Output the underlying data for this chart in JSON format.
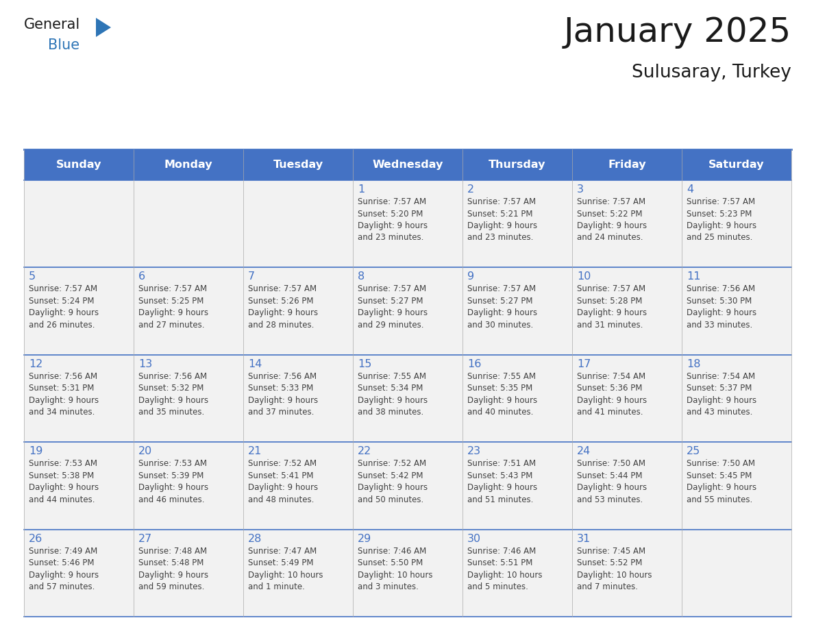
{
  "title": "January 2025",
  "subtitle": "Sulusaray, Turkey",
  "days_of_week": [
    "Sunday",
    "Monday",
    "Tuesday",
    "Wednesday",
    "Thursday",
    "Friday",
    "Saturday"
  ],
  "header_bg": "#4472C4",
  "header_text": "#FFFFFF",
  "cell_bg_light": "#F2F2F2",
  "cell_bg_white": "#FFFFFF",
  "border_color": "#4472C4",
  "row_line_color": "#4472C4",
  "day_num_color": "#4472C4",
  "text_color": "#404040",
  "title_color": "#1a1a1a",
  "logo_general_color": "#1a1a1a",
  "logo_blue_color": "#2E75B6",
  "calendar_data": [
    [
      {
        "day": null,
        "info": ""
      },
      {
        "day": null,
        "info": ""
      },
      {
        "day": null,
        "info": ""
      },
      {
        "day": 1,
        "info": "Sunrise: 7:57 AM\nSunset: 5:20 PM\nDaylight: 9 hours\nand 23 minutes."
      },
      {
        "day": 2,
        "info": "Sunrise: 7:57 AM\nSunset: 5:21 PM\nDaylight: 9 hours\nand 23 minutes."
      },
      {
        "day": 3,
        "info": "Sunrise: 7:57 AM\nSunset: 5:22 PM\nDaylight: 9 hours\nand 24 minutes."
      },
      {
        "day": 4,
        "info": "Sunrise: 7:57 AM\nSunset: 5:23 PM\nDaylight: 9 hours\nand 25 minutes."
      }
    ],
    [
      {
        "day": 5,
        "info": "Sunrise: 7:57 AM\nSunset: 5:24 PM\nDaylight: 9 hours\nand 26 minutes."
      },
      {
        "day": 6,
        "info": "Sunrise: 7:57 AM\nSunset: 5:25 PM\nDaylight: 9 hours\nand 27 minutes."
      },
      {
        "day": 7,
        "info": "Sunrise: 7:57 AM\nSunset: 5:26 PM\nDaylight: 9 hours\nand 28 minutes."
      },
      {
        "day": 8,
        "info": "Sunrise: 7:57 AM\nSunset: 5:27 PM\nDaylight: 9 hours\nand 29 minutes."
      },
      {
        "day": 9,
        "info": "Sunrise: 7:57 AM\nSunset: 5:27 PM\nDaylight: 9 hours\nand 30 minutes."
      },
      {
        "day": 10,
        "info": "Sunrise: 7:57 AM\nSunset: 5:28 PM\nDaylight: 9 hours\nand 31 minutes."
      },
      {
        "day": 11,
        "info": "Sunrise: 7:56 AM\nSunset: 5:30 PM\nDaylight: 9 hours\nand 33 minutes."
      }
    ],
    [
      {
        "day": 12,
        "info": "Sunrise: 7:56 AM\nSunset: 5:31 PM\nDaylight: 9 hours\nand 34 minutes."
      },
      {
        "day": 13,
        "info": "Sunrise: 7:56 AM\nSunset: 5:32 PM\nDaylight: 9 hours\nand 35 minutes."
      },
      {
        "day": 14,
        "info": "Sunrise: 7:56 AM\nSunset: 5:33 PM\nDaylight: 9 hours\nand 37 minutes."
      },
      {
        "day": 15,
        "info": "Sunrise: 7:55 AM\nSunset: 5:34 PM\nDaylight: 9 hours\nand 38 minutes."
      },
      {
        "day": 16,
        "info": "Sunrise: 7:55 AM\nSunset: 5:35 PM\nDaylight: 9 hours\nand 40 minutes."
      },
      {
        "day": 17,
        "info": "Sunrise: 7:54 AM\nSunset: 5:36 PM\nDaylight: 9 hours\nand 41 minutes."
      },
      {
        "day": 18,
        "info": "Sunrise: 7:54 AM\nSunset: 5:37 PM\nDaylight: 9 hours\nand 43 minutes."
      }
    ],
    [
      {
        "day": 19,
        "info": "Sunrise: 7:53 AM\nSunset: 5:38 PM\nDaylight: 9 hours\nand 44 minutes."
      },
      {
        "day": 20,
        "info": "Sunrise: 7:53 AM\nSunset: 5:39 PM\nDaylight: 9 hours\nand 46 minutes."
      },
      {
        "day": 21,
        "info": "Sunrise: 7:52 AM\nSunset: 5:41 PM\nDaylight: 9 hours\nand 48 minutes."
      },
      {
        "day": 22,
        "info": "Sunrise: 7:52 AM\nSunset: 5:42 PM\nDaylight: 9 hours\nand 50 minutes."
      },
      {
        "day": 23,
        "info": "Sunrise: 7:51 AM\nSunset: 5:43 PM\nDaylight: 9 hours\nand 51 minutes."
      },
      {
        "day": 24,
        "info": "Sunrise: 7:50 AM\nSunset: 5:44 PM\nDaylight: 9 hours\nand 53 minutes."
      },
      {
        "day": 25,
        "info": "Sunrise: 7:50 AM\nSunset: 5:45 PM\nDaylight: 9 hours\nand 55 minutes."
      }
    ],
    [
      {
        "day": 26,
        "info": "Sunrise: 7:49 AM\nSunset: 5:46 PM\nDaylight: 9 hours\nand 57 minutes."
      },
      {
        "day": 27,
        "info": "Sunrise: 7:48 AM\nSunset: 5:48 PM\nDaylight: 9 hours\nand 59 minutes."
      },
      {
        "day": 28,
        "info": "Sunrise: 7:47 AM\nSunset: 5:49 PM\nDaylight: 10 hours\nand 1 minute."
      },
      {
        "day": 29,
        "info": "Sunrise: 7:46 AM\nSunset: 5:50 PM\nDaylight: 10 hours\nand 3 minutes."
      },
      {
        "day": 30,
        "info": "Sunrise: 7:46 AM\nSunset: 5:51 PM\nDaylight: 10 hours\nand 5 minutes."
      },
      {
        "day": 31,
        "info": "Sunrise: 7:45 AM\nSunset: 5:52 PM\nDaylight: 10 hours\nand 7 minutes."
      },
      {
        "day": null,
        "info": ""
      }
    ]
  ]
}
